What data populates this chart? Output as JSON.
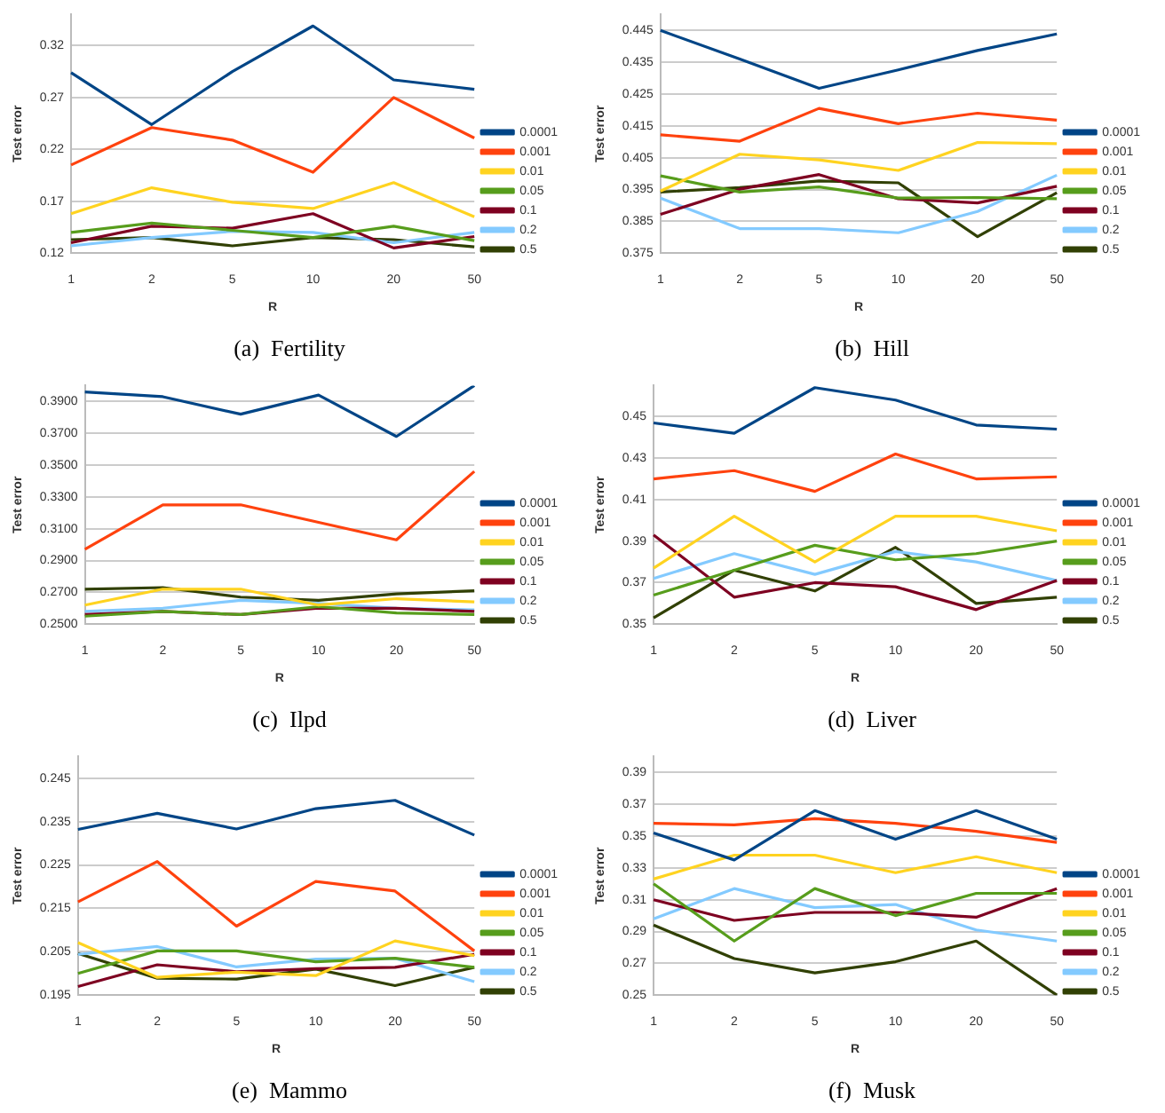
{
  "chart_data": [
    {
      "type": "line",
      "title": "(a)  Fertility",
      "xlabel": "R",
      "ylabel": "Test error",
      "categories": [
        "1",
        "2",
        "5",
        "10",
        "20",
        "50"
      ],
      "ylim": [
        0.12,
        0.35
      ],
      "yticks": [
        0.12,
        0.17,
        0.22,
        0.27,
        0.32
      ],
      "grid": "y",
      "legend": "right",
      "marker": "none",
      "line_style": "solid",
      "series": [
        {
          "name": "0.0001",
          "color": "#004586",
          "values": [
            0.294,
            0.244,
            0.295,
            0.339,
            0.287,
            0.278
          ]
        },
        {
          "name": "0.001",
          "color": "#ff420e",
          "values": [
            0.205,
            0.241,
            0.229,
            0.198,
            0.27,
            0.231
          ]
        },
        {
          "name": "0.01",
          "color": "#ffd320",
          "values": [
            0.158,
            0.183,
            0.169,
            0.163,
            0.188,
            0.155
          ]
        },
        {
          "name": "0.05",
          "color": "#579d1c",
          "values": [
            0.14,
            0.149,
            0.142,
            0.135,
            0.146,
            0.132
          ]
        },
        {
          "name": "0.1",
          "color": "#7e0021",
          "values": [
            0.13,
            0.146,
            0.144,
            0.158,
            0.125,
            0.136
          ]
        },
        {
          "name": "0.2",
          "color": "#83caff",
          "values": [
            0.127,
            0.135,
            0.141,
            0.14,
            0.13,
            0.14
          ]
        },
        {
          "name": "0.5",
          "color": "#314004",
          "values": [
            0.133,
            0.135,
            0.127,
            0.135,
            0.133,
            0.126
          ]
        }
      ]
    },
    {
      "type": "line",
      "title": "(b)  Hill",
      "xlabel": "R",
      "ylabel": "Test error",
      "categories": [
        "1",
        "2",
        "5",
        "10",
        "20",
        "50"
      ],
      "ylim": [
        0.375,
        0.45
      ],
      "yticks": [
        0.375,
        0.385,
        0.395,
        0.405,
        0.415,
        0.425,
        0.435,
        0.445
      ],
      "grid": "y",
      "legend": "right",
      "marker": "none",
      "line_style": "solid",
      "series": [
        {
          "name": "0.0001",
          "color": "#004586",
          "values": [
            0.445,
            0.436,
            0.4268,
            0.4326,
            0.4387,
            0.4439
          ]
        },
        {
          "name": "0.001",
          "color": "#ff420e",
          "values": [
            0.4122,
            0.4102,
            0.4205,
            0.4157,
            0.419,
            0.4168
          ]
        },
        {
          "name": "0.01",
          "color": "#ffd320",
          "values": [
            0.3945,
            0.4061,
            0.4043,
            0.401,
            0.4098,
            0.4094
          ]
        },
        {
          "name": "0.05",
          "color": "#579d1c",
          "values": [
            0.3993,
            0.3942,
            0.3958,
            0.3923,
            0.3925,
            0.3921
          ]
        },
        {
          "name": "0.1",
          "color": "#7e0021",
          "values": [
            0.3872,
            0.3951,
            0.3997,
            0.3921,
            0.3908,
            0.396
          ]
        },
        {
          "name": "0.2",
          "color": "#83caff",
          "values": [
            0.3923,
            0.3827,
            0.3827,
            0.3814,
            0.3881,
            0.3995
          ]
        },
        {
          "name": "0.5",
          "color": "#314004",
          "values": [
            0.3942,
            0.3956,
            0.3977,
            0.3971,
            0.3802,
            0.394
          ]
        }
      ]
    },
    {
      "type": "line",
      "title": "(c)  Ilpd",
      "xlabel": "R",
      "ylabel": "Test error",
      "categories": [
        "1",
        "2",
        "5",
        "10",
        "20",
        "50"
      ],
      "ylim": [
        0.25,
        0.4
      ],
      "yticks": [
        {
          "value": 0.25,
          "label": "0.2500"
        },
        {
          "value": 0.27,
          "label": "0.2700"
        },
        {
          "value": 0.29,
          "label": "0.2900"
        },
        {
          "value": 0.31,
          "label": "0.3100"
        },
        {
          "value": 0.33,
          "label": "0.3300"
        },
        {
          "value": 0.35,
          "label": "0.3500"
        },
        {
          "value": 0.37,
          "label": "0.3700"
        },
        {
          "value": 0.39,
          "label": "0.3900"
        }
      ],
      "grid": "y",
      "legend": "right",
      "marker": "none",
      "line_style": "solid",
      "series": [
        {
          "name": "0.0001",
          "color": "#004586",
          "values": [
            0.396,
            0.393,
            0.382,
            0.394,
            0.368,
            0.4
          ]
        },
        {
          "name": "0.001",
          "color": "#ff420e",
          "values": [
            0.297,
            0.325,
            0.325,
            0.314,
            0.303,
            0.346
          ]
        },
        {
          "name": "0.01",
          "color": "#ffd320",
          "values": [
            0.262,
            0.272,
            0.272,
            0.262,
            0.266,
            0.264
          ]
        },
        {
          "name": "0.05",
          "color": "#579d1c",
          "values": [
            0.255,
            0.258,
            0.256,
            0.261,
            0.257,
            0.256
          ]
        },
        {
          "name": "0.1",
          "color": "#7e0021",
          "values": [
            0.256,
            0.258,
            0.256,
            0.26,
            0.26,
            0.258
          ]
        },
        {
          "name": "0.2",
          "color": "#83caff",
          "values": [
            0.258,
            0.26,
            0.265,
            0.263,
            0.26,
            0.259
          ]
        },
        {
          "name": "0.5",
          "color": "#314004",
          "values": [
            0.272,
            0.273,
            0.267,
            0.265,
            0.269,
            0.271
          ]
        }
      ]
    },
    {
      "type": "line",
      "title": "(d)  Liver",
      "xlabel": "R",
      "ylabel": "Test error",
      "categories": [
        "1",
        "2",
        "5",
        "10",
        "20",
        "50"
      ],
      "ylim": [
        0.35,
        0.465
      ],
      "yticks": [
        0.35,
        0.37,
        0.39,
        0.41,
        0.43,
        0.45
      ],
      "grid": "y",
      "legend": "right",
      "marker": "none",
      "line_style": "solid",
      "series": [
        {
          "name": "0.0001",
          "color": "#004586",
          "values": [
            0.447,
            0.442,
            0.464,
            0.458,
            0.446,
            0.444
          ]
        },
        {
          "name": "0.001",
          "color": "#ff420e",
          "values": [
            0.42,
            0.424,
            0.414,
            0.432,
            0.42,
            0.421
          ]
        },
        {
          "name": "0.01",
          "color": "#ffd320",
          "values": [
            0.377,
            0.402,
            0.38,
            0.402,
            0.402,
            0.395
          ]
        },
        {
          "name": "0.05",
          "color": "#579d1c",
          "values": [
            0.364,
            0.376,
            0.388,
            0.381,
            0.384,
            0.39
          ]
        },
        {
          "name": "0.1",
          "color": "#7e0021",
          "values": [
            0.393,
            0.363,
            0.37,
            0.368,
            0.357,
            0.371
          ]
        },
        {
          "name": "0.2",
          "color": "#83caff",
          "values": [
            0.372,
            0.384,
            0.374,
            0.385,
            0.38,
            0.371
          ]
        },
        {
          "name": "0.5",
          "color": "#314004",
          "values": [
            0.353,
            0.376,
            0.366,
            0.387,
            0.36,
            0.363
          ]
        }
      ]
    },
    {
      "type": "line",
      "title": "(e)  Mammo",
      "xlabel": "R",
      "ylabel": "Test error",
      "categories": [
        "1",
        "2",
        "5",
        "10",
        "20",
        "50"
      ],
      "ylim": [
        0.195,
        0.25
      ],
      "yticks": [
        0.195,
        0.205,
        0.215,
        0.225,
        0.235,
        0.245
      ],
      "grid": "y",
      "legend": "right",
      "marker": "none",
      "line_style": "solid",
      "series": [
        {
          "name": "0.0001",
          "color": "#004586",
          "values": [
            0.2332,
            0.2369,
            0.2333,
            0.238,
            0.2399,
            0.2319
          ]
        },
        {
          "name": "0.001",
          "color": "#ff420e",
          "values": [
            0.2165,
            0.2258,
            0.2109,
            0.2212,
            0.219,
            0.2052
          ]
        },
        {
          "name": "0.01",
          "color": "#ffd320",
          "values": [
            0.2071,
            0.1991,
            0.2003,
            0.1995,
            0.2075,
            0.2041
          ]
        },
        {
          "name": "0.05",
          "color": "#579d1c",
          "values": [
            0.2,
            0.2052,
            0.2052,
            0.2027,
            0.2035,
            0.2014
          ]
        },
        {
          "name": "0.1",
          "color": "#7e0021",
          "values": [
            0.197,
            0.202,
            0.2004,
            0.2011,
            0.2014,
            0.2044
          ]
        },
        {
          "name": "0.2",
          "color": "#83caff",
          "values": [
            0.2044,
            0.2062,
            0.2015,
            0.2033,
            0.2035,
            0.1981
          ]
        },
        {
          "name": "0.5",
          "color": "#314004",
          "values": [
            0.2046,
            0.1989,
            0.1987,
            0.201,
            0.1972,
            0.2014
          ]
        }
      ]
    },
    {
      "type": "line",
      "title": "(f)  Musk",
      "xlabel": "R",
      "ylabel": "Test error",
      "categories": [
        "1",
        "2",
        "5",
        "10",
        "20",
        "50"
      ],
      "ylim": [
        0.25,
        0.4
      ],
      "yticks": [
        0.25,
        0.27,
        0.29,
        0.31,
        0.33,
        0.35,
        0.37,
        0.39
      ],
      "grid": "y",
      "legend": "right",
      "marker": "none",
      "line_style": "solid",
      "series": [
        {
          "name": "0.0001",
          "color": "#004586",
          "values": [
            0.352,
            0.335,
            0.366,
            0.348,
            0.366,
            0.348
          ]
        },
        {
          "name": "0.001",
          "color": "#ff420e",
          "values": [
            0.358,
            0.357,
            0.361,
            0.358,
            0.353,
            0.346
          ]
        },
        {
          "name": "0.01",
          "color": "#ffd320",
          "values": [
            0.323,
            0.338,
            0.338,
            0.327,
            0.337,
            0.327
          ]
        },
        {
          "name": "0.05",
          "color": "#579d1c",
          "values": [
            0.32,
            0.284,
            0.317,
            0.3,
            0.314,
            0.314
          ]
        },
        {
          "name": "0.1",
          "color": "#7e0021",
          "values": [
            0.31,
            0.297,
            0.302,
            0.302,
            0.299,
            0.317
          ]
        },
        {
          "name": "0.2",
          "color": "#83caff",
          "values": [
            0.298,
            0.317,
            0.305,
            0.307,
            0.291,
            0.284
          ]
        },
        {
          "name": "0.5",
          "color": "#314004",
          "values": [
            0.294,
            0.273,
            0.264,
            0.271,
            0.284,
            0.25
          ]
        }
      ]
    }
  ]
}
